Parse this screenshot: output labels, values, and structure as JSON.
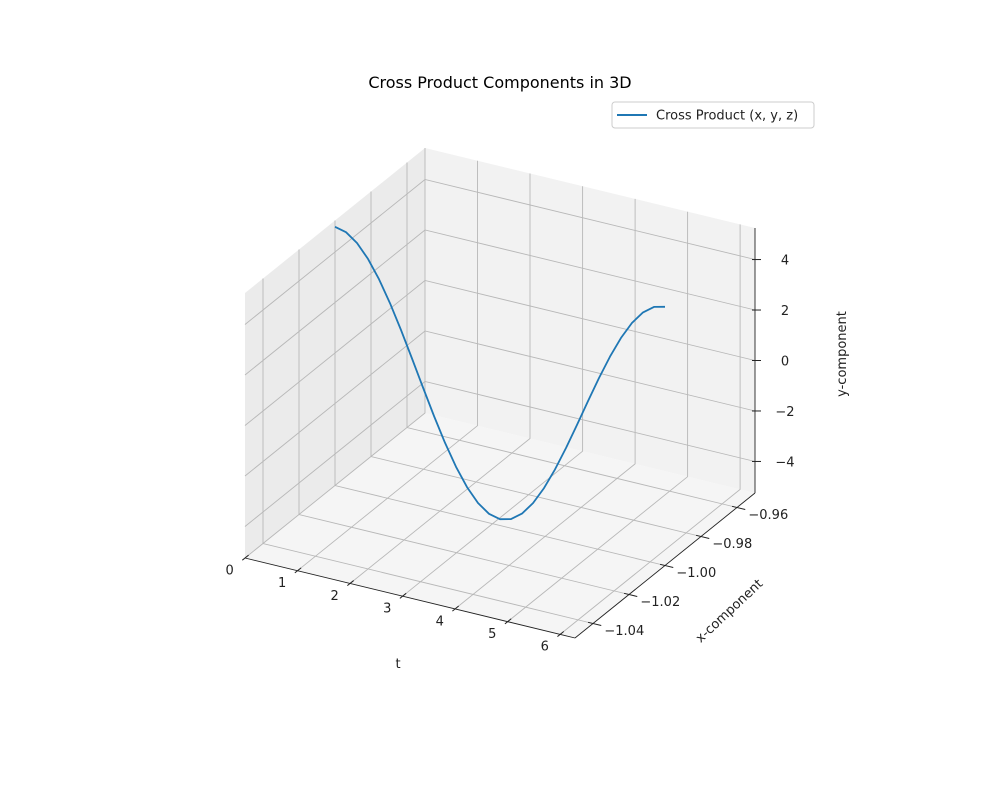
{
  "chart_data": {
    "type": "line",
    "projection": "3d",
    "title": "Cross Product Components in 3D",
    "xlabel": "t",
    "ylabel": "x-component",
    "zlabel": "y-component",
    "legend": {
      "position": "top-right",
      "entries": [
        "Cross Product (x, y, z)"
      ]
    },
    "series": [
      {
        "name": "Cross Product (x, y, z)",
        "color": "#1f77b4",
        "t": [
          0.0,
          0.209,
          0.419,
          0.628,
          0.838,
          1.047,
          1.257,
          1.466,
          1.676,
          1.885,
          2.094,
          2.304,
          2.513,
          2.723,
          2.932,
          3.142,
          3.351,
          3.56,
          3.77,
          3.979,
          4.189,
          4.398,
          4.608,
          4.817,
          5.027,
          5.236,
          5.445,
          5.655,
          5.864,
          6.074,
          6.283
        ],
        "x": [
          -1,
          -1,
          -1,
          -1,
          -1,
          -1,
          -1,
          -1,
          -1,
          -1,
          -1,
          -1,
          -1,
          -1,
          -1,
          -1,
          -1,
          -1,
          -1,
          -1,
          -1,
          -1,
          -1,
          -1,
          -1,
          -1,
          -1,
          -1,
          -1,
          -1,
          -1
        ],
        "y": [
          5.0,
          4.891,
          4.568,
          4.045,
          3.346,
          2.5,
          1.545,
          0.523,
          -0.523,
          -1.545,
          -2.5,
          -3.346,
          -4.045,
          -4.568,
          -4.891,
          -5.0,
          -4.891,
          -4.568,
          -4.045,
          -3.346,
          -2.5,
          -1.545,
          -0.523,
          0.523,
          1.545,
          2.5,
          3.346,
          4.045,
          4.568,
          4.891,
          5.0
        ]
      }
    ],
    "axes": {
      "t": {
        "range": [
          0,
          6.283
        ],
        "ticks": [
          0,
          1,
          2,
          3,
          4,
          5,
          6
        ]
      },
      "x": {
        "range": [
          -1.05,
          -0.95
        ],
        "ticks": [
          -1.04,
          -1.02,
          -1.0,
          -0.98,
          -0.96
        ],
        "tick_labels": [
          "−1.04",
          "−1.02",
          "−1.00",
          "−0.98",
          "−0.96"
        ]
      },
      "y": {
        "range": [
          -5.25,
          5.25
        ],
        "ticks": [
          -4,
          -2,
          0,
          2,
          4
        ],
        "tick_labels": [
          "−4",
          "−2",
          "0",
          "2",
          "4"
        ]
      }
    },
    "grid": true
  }
}
